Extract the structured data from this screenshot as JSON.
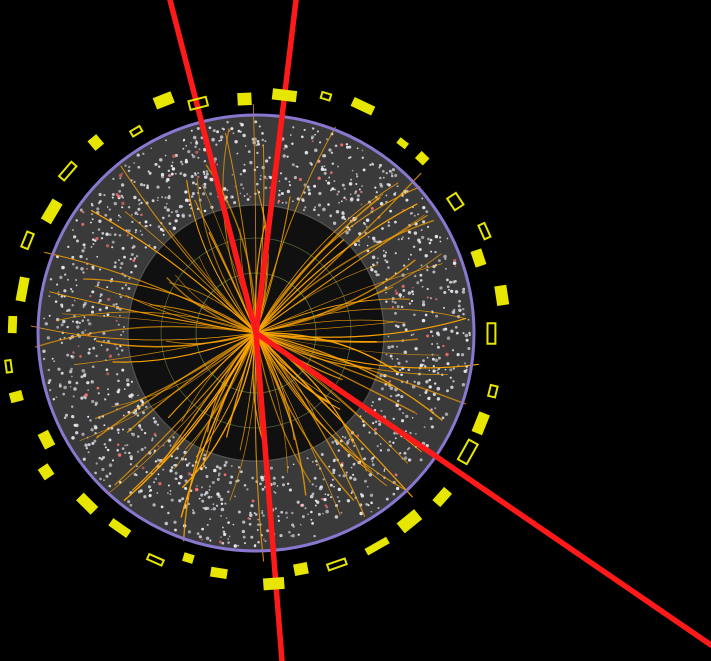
{
  "scene": {
    "type": "particle-collision-event-display",
    "colors": {
      "background": "#000000",
      "detector_fill": "#3a3a3a",
      "detector_ring": "#8a78d0",
      "inner_core": "#101010",
      "track": "#ffa500",
      "muon": "#ff1a1a",
      "calorimeter": "#e6e600",
      "hit_light": "#e8e8f0",
      "hit_red": "#ff7070"
    },
    "counts": {
      "orange_tracks": 120,
      "detector_hits": 1500,
      "yellow_segments": 38
    }
  }
}
